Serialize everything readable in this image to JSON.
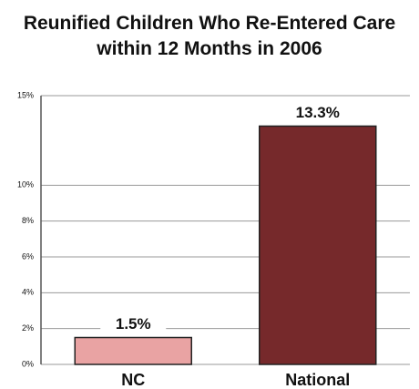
{
  "chart_data": {
    "type": "bar",
    "title": "Reunified Children Who Re-Entered Care within 12 Months in 2006",
    "categories": [
      "NC",
      "National"
    ],
    "values": [
      1.5,
      13.3
    ],
    "value_labels": [
      "1.5%",
      "13.3%"
    ],
    "colors": [
      "#e9a3a3",
      "#76292b"
    ],
    "ylim": [
      0,
      15
    ],
    "yticks": [
      {
        "value": 0,
        "label": "0%"
      },
      {
        "value": 2,
        "label": "2%"
      },
      {
        "value": 4,
        "label": "4%"
      },
      {
        "value": 6,
        "label": "6%"
      },
      {
        "value": 8,
        "label": "8%"
      },
      {
        "value": 10,
        "label": "10%"
      },
      {
        "value": 15,
        "label": "15%"
      }
    ],
    "grid": true
  }
}
